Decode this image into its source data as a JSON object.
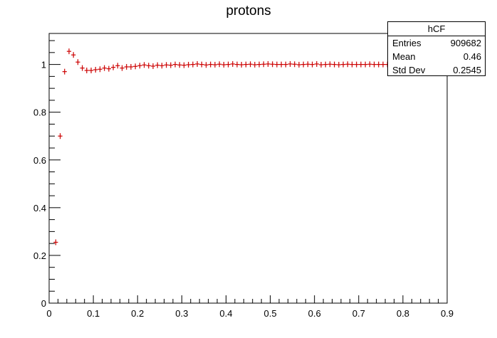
{
  "chart_data": {
    "type": "scatter",
    "title": "protons",
    "xlabel": "",
    "ylabel": "",
    "xlim": [
      0,
      0.9
    ],
    "ylim": [
      0,
      1.13
    ],
    "x_ticks": [
      "0",
      "0.1",
      "0.2",
      "0.3",
      "0.4",
      "0.5",
      "0.6",
      "0.7",
      "0.8",
      "0.9"
    ],
    "y_ticks": [
      "0",
      "0.2",
      "0.4",
      "0.6",
      "0.8",
      "1"
    ],
    "marker_color": "#cc0000",
    "bin_width": 0.01,
    "series": [
      {
        "x": [
          0.015,
          0.025,
          0.035,
          0.045,
          0.055,
          0.065,
          0.075,
          0.085,
          0.095,
          0.105,
          0.115,
          0.125,
          0.135,
          0.145,
          0.155,
          0.165,
          0.175,
          0.185,
          0.195,
          0.205,
          0.215,
          0.225,
          0.235,
          0.245,
          0.255,
          0.265,
          0.275,
          0.285,
          0.295,
          0.305,
          0.315,
          0.325,
          0.335,
          0.345,
          0.355,
          0.365,
          0.375,
          0.385,
          0.395,
          0.405,
          0.415,
          0.425,
          0.435,
          0.445,
          0.455,
          0.465,
          0.475,
          0.485,
          0.495,
          0.505,
          0.515,
          0.525,
          0.535,
          0.545,
          0.555,
          0.565,
          0.575,
          0.585,
          0.595,
          0.605,
          0.615,
          0.625,
          0.635,
          0.645,
          0.655,
          0.665,
          0.675,
          0.685,
          0.695,
          0.705,
          0.715,
          0.725,
          0.735,
          0.745,
          0.755,
          0.765,
          0.775,
          0.785,
          0.795,
          0.805,
          0.815,
          0.825,
          0.835,
          0.845,
          0.855,
          0.865,
          0.875,
          0.885,
          0.895
        ],
        "y": [
          0.255,
          0.7,
          0.97,
          1.055,
          1.04,
          1.01,
          0.985,
          0.975,
          0.975,
          0.978,
          0.98,
          0.985,
          0.982,
          0.988,
          0.995,
          0.985,
          0.99,
          0.99,
          0.992,
          0.995,
          0.998,
          0.995,
          0.993,
          0.997,
          0.995,
          0.998,
          0.997,
          1.0,
          0.998,
          0.997,
          0.999,
          1.0,
          1.002,
          1.0,
          0.998,
          1.0,
          0.999,
          1.001,
          0.999,
          1.0,
          1.002,
          1.0,
          0.999,
          1.0,
          1.001,
          0.999,
          1.0,
          1.001,
          1.002,
          1.001,
          1.0,
          1.0,
          1.0,
          1.002,
          1.001,
          0.999,
          1.0,
          1.001,
          1.0,
          1.002,
          0.999,
          1.0,
          1.001,
          1.0,
          0.999,
          1.0,
          1.001,
          1.0,
          1.0,
          1.0,
          1.0,
          1.001,
          1.0,
          1.0,
          1.0,
          1.0,
          1.0,
          1.0,
          1.0,
          1.0,
          1.0,
          1.0,
          1.0,
          1.0,
          1.0,
          1.0,
          1.0,
          1.0,
          1.0
        ]
      }
    ]
  },
  "stats": {
    "name": "hCF",
    "rows": [
      {
        "label": "Entries",
        "value": "909682"
      },
      {
        "label": "Mean",
        "value": "0.46"
      },
      {
        "label": "Std Dev",
        "value": "0.2545"
      }
    ]
  }
}
